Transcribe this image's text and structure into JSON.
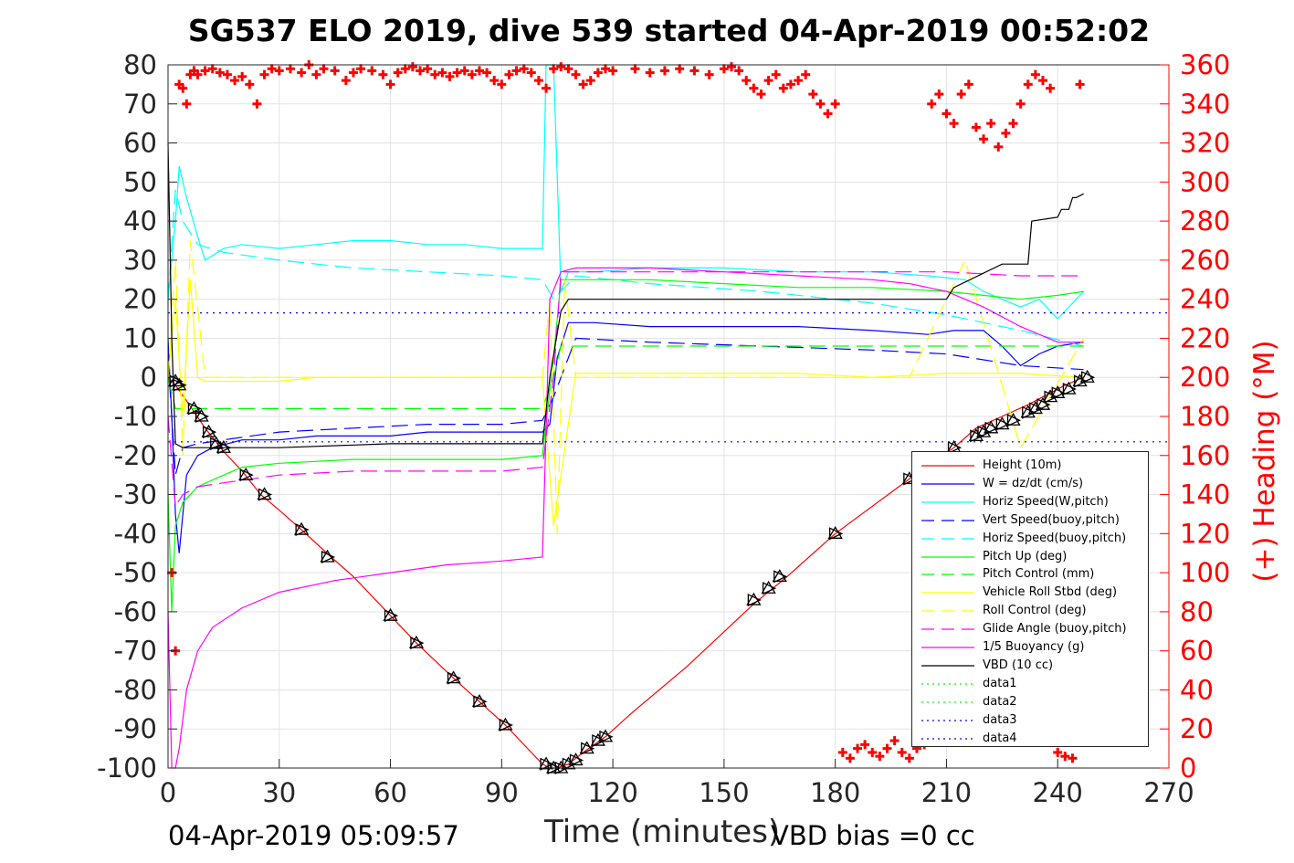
{
  "chart_data": {
    "type": "line",
    "title": "SG537 ELO 2019, dive 539 started 04-Apr-2019 00:52:02",
    "xlabel": "Time (minutes)",
    "ylabel": "",
    "ylabel_right": "(+) Heading (°M)",
    "xlim": [
      0,
      270
    ],
    "ylim": [
      -100,
      80
    ],
    "ylim_right": [
      0,
      360
    ],
    "x_ticks": [
      "0",
      "30",
      "60",
      "90",
      "120",
      "150",
      "180",
      "210",
      "240",
      "270"
    ],
    "y_ticks": [
      "80",
      "70",
      "60",
      "50",
      "40",
      "30",
      "20",
      "10",
      "0",
      "-10",
      "-20",
      "-30",
      "-40",
      "-50",
      "-60",
      "-70",
      "-80",
      "-90",
      "-100"
    ],
    "y_right_ticks": [
      "360",
      "340",
      "320",
      "300",
      "280",
      "260",
      "240",
      "220",
      "200",
      "180",
      "160",
      "140",
      "120",
      "100",
      "80",
      "60",
      "40",
      "20",
      "0"
    ],
    "grid": true,
    "legend_position": "bottom-right",
    "footer_left": "04-Apr-2019 05:09:57",
    "footer_right": "VBD bias =0 cc",
    "series": [
      {
        "name": "Height (10m)",
        "color": "#ff0000",
        "style": "solid",
        "x": [
          0,
          2,
          5,
          10,
          15,
          20,
          25,
          30,
          36,
          44,
          50,
          60,
          67,
          77,
          84,
          91,
          97,
          101,
          103,
          105,
          108,
          112,
          118,
          125,
          140,
          158,
          167,
          180,
          200,
          212,
          218,
          225,
          232,
          238,
          242,
          247
        ],
        "y": [
          0,
          -2,
          -6,
          -13,
          -19,
          -24,
          -30,
          -34,
          -39,
          -46,
          -51,
          -61,
          -68,
          -77,
          -83,
          -89,
          -95,
          -99,
          -100,
          -100,
          -99,
          -96,
          -92,
          -86,
          -74,
          -58,
          -51,
          -40,
          -26,
          -18,
          -13,
          -10,
          -7,
          -4,
          -2,
          0
        ]
      },
      {
        "name": "W = dz/dt (cm/s)",
        "color": "#0000ff",
        "style": "solid",
        "x": [
          0,
          1,
          2,
          3,
          5,
          8,
          12,
          16,
          20,
          30,
          40,
          50,
          60,
          70,
          80,
          90,
          101,
          103,
          105,
          108,
          115,
          130,
          150,
          170,
          190,
          205,
          212,
          220,
          225,
          230,
          235,
          240,
          247
        ],
        "y": [
          10,
          -10,
          -35,
          -45,
          -25,
          -20,
          -18,
          -17,
          -16,
          -16,
          -15,
          -15,
          -15,
          -14,
          -14,
          -14,
          -14,
          -12,
          5,
          14,
          14,
          13,
          13,
          13,
          12,
          11,
          12,
          12,
          8,
          3,
          6,
          8,
          9
        ]
      },
      {
        "name": "Horiz Speed(W,pitch)",
        "color": "#00ffff",
        "style": "solid",
        "x": [
          0,
          2,
          3,
          5,
          8,
          10,
          15,
          20,
          30,
          40,
          50,
          60,
          70,
          80,
          90,
          101,
          102,
          104,
          106,
          108,
          115,
          130,
          150,
          170,
          190,
          205,
          215,
          220,
          225,
          230,
          235,
          240,
          247
        ],
        "y": [
          20,
          40,
          54,
          46,
          36,
          30,
          33,
          34,
          33,
          34,
          35,
          35,
          34,
          34,
          33,
          33,
          80,
          80,
          22,
          27,
          27,
          28,
          28,
          27,
          27,
          26,
          25,
          22,
          20,
          18,
          20,
          15,
          22
        ]
      },
      {
        "name": "Vert Speed(buoy,pitch)",
        "color": "#0000ff",
        "style": "dashed",
        "x": [
          0,
          2,
          4,
          8,
          15,
          30,
          50,
          70,
          90,
          101,
          104,
          110,
          130,
          160,
          190,
          210,
          230,
          247
        ],
        "y": [
          5,
          -25,
          -18,
          -17,
          -16,
          -14,
          -13,
          -12,
          -12,
          -11,
          -5,
          10,
          9,
          8,
          7,
          6,
          3,
          2
        ]
      },
      {
        "name": "Horiz Speed(buoy,pitch)",
        "color": "#00ffff",
        "style": "dashed",
        "x": [
          0,
          2,
          4,
          8,
          15,
          30,
          50,
          70,
          90,
          101,
          104,
          110,
          130,
          160,
          190,
          210,
          230,
          247
        ],
        "y": [
          20,
          48,
          40,
          34,
          32,
          30,
          28,
          27,
          26,
          25,
          20,
          26,
          24,
          22,
          19,
          16,
          12,
          8
        ]
      },
      {
        "name": "Pitch Up (deg)",
        "color": "#00ff00",
        "style": "solid",
        "x": [
          0,
          1,
          2,
          4,
          8,
          15,
          20,
          30,
          50,
          70,
          90,
          101,
          104,
          106,
          110,
          130,
          150,
          170,
          190,
          210,
          220,
          230,
          240,
          247
        ],
        "y": [
          -30,
          -60,
          -38,
          -32,
          -28,
          -25,
          -23,
          -22,
          -21,
          -21,
          -21,
          -20,
          5,
          25,
          25,
          25,
          24,
          23,
          23,
          22,
          21,
          20,
          21,
          22
        ]
      },
      {
        "name": "Pitch Control (mm)",
        "color": "#00ff00",
        "style": "dashed",
        "x": [
          0,
          2,
          4,
          10,
          20,
          101,
          104,
          106,
          120,
          200,
          247
        ],
        "y": [
          0,
          -8,
          -8,
          -8,
          -8,
          -8,
          0,
          8,
          8,
          8,
          8
        ]
      },
      {
        "name": "Vehicle Roll Stbd (deg)",
        "color": "#ffff00",
        "style": "solid",
        "x": [
          0,
          2,
          4,
          6,
          8,
          10,
          20,
          30,
          40,
          50,
          60,
          70,
          80,
          90,
          101,
          104,
          110,
          130,
          150,
          170,
          190,
          210,
          230,
          247
        ],
        "y": [
          0,
          20,
          -10,
          25,
          0,
          -1,
          -1,
          -1,
          0,
          0,
          0,
          0,
          0,
          0,
          0,
          -38,
          1,
          1,
          1,
          1,
          0,
          1,
          1,
          0
        ]
      },
      {
        "name": "Roll Control (deg)",
        "color": "#ffff00",
        "style": "dashed",
        "x": [
          0,
          2,
          4,
          6,
          10,
          50,
          101,
          103,
          105,
          107,
          110,
          160,
          200,
          215,
          230,
          247
        ],
        "y": [
          0,
          30,
          -20,
          35,
          0,
          0,
          0,
          20,
          -40,
          25,
          0,
          0,
          0,
          30,
          -18,
          10
        ]
      },
      {
        "name": "Glide Angle (buoy,pitch)",
        "color": "#ff00ff",
        "style": "dashed",
        "x": [
          0,
          2,
          4,
          8,
          15,
          30,
          50,
          70,
          90,
          101,
          104,
          106,
          110,
          130,
          160,
          190,
          210,
          230,
          247
        ],
        "y": [
          -10,
          -33,
          -30,
          -28,
          -27,
          -25,
          -24,
          -24,
          -24,
          -23,
          0,
          27,
          27,
          27,
          27,
          27,
          27,
          26,
          26
        ]
      },
      {
        "name": "1/5 Buoyancy (g)",
        "color": "#ff00ff",
        "style": "solid",
        "x": [
          0,
          1,
          2,
          3,
          5,
          8,
          12,
          20,
          30,
          45,
          60,
          75,
          90,
          101,
          103,
          106,
          110,
          130,
          150,
          170,
          190,
          200,
          210,
          220,
          230,
          240,
          247
        ],
        "y": [
          -60,
          -100,
          -100,
          -95,
          -80,
          -70,
          -64,
          -59,
          -55,
          -52,
          -50,
          -48,
          -47,
          -46,
          20,
          27,
          28,
          28,
          27,
          26,
          25,
          24,
          22,
          18,
          13,
          9,
          9
        ]
      },
      {
        "name": "VBD (10 cc)",
        "color": "#000000",
        "style": "solid",
        "x": [
          0,
          1,
          2,
          4,
          30,
          60,
          90,
          101,
          103,
          106,
          108,
          150,
          200,
          210,
          212,
          225,
          226,
          232,
          233,
          240,
          241,
          243,
          244,
          245,
          247
        ],
        "y": [
          60,
          10,
          -17,
          -18,
          -18,
          -17,
          -17,
          -17,
          0,
          17,
          20,
          20,
          20,
          20,
          23,
          29,
          29,
          29,
          40,
          41,
          43,
          43,
          46,
          46,
          47
        ]
      },
      {
        "name": "data1",
        "color": "#00ff00",
        "style": "dotted",
        "x": [],
        "y": []
      },
      {
        "name": "data2",
        "color": "#00ff00",
        "style": "dotted",
        "x": [],
        "y": []
      },
      {
        "name": "data3",
        "color": "#0000ff",
        "style": "dotted",
        "x": [
          0,
          270
        ],
        "y": [
          16.5,
          16.5
        ]
      },
      {
        "name": "data4",
        "color": "#0000ff",
        "style": "dotted",
        "x": [
          0,
          270
        ],
        "y": [
          -16.5,
          -16.5
        ]
      }
    ],
    "heading_markers": {
      "color": "#ff0000",
      "marker": "+",
      "axis": "right",
      "x": [
        1,
        2,
        3,
        4,
        5,
        6,
        7,
        8,
        10,
        12,
        14,
        16,
        18,
        20,
        22,
        24,
        26,
        28,
        30,
        33,
        36,
        38,
        40,
        42,
        45,
        48,
        50,
        52,
        55,
        58,
        60,
        62,
        64,
        66,
        68,
        70,
        72,
        74,
        76,
        78,
        80,
        82,
        84,
        86,
        88,
        90,
        92,
        94,
        96,
        98,
        100,
        102,
        104,
        106,
        108,
        110,
        112,
        114,
        116,
        118,
        120,
        126,
        130,
        134,
        138,
        142,
        146,
        150,
        152,
        154,
        156,
        158,
        160,
        162,
        164,
        166,
        168,
        170,
        172,
        174,
        176,
        178,
        180,
        182,
        184,
        186,
        188,
        190,
        192,
        194,
        196,
        198,
        200,
        202,
        204,
        206,
        208,
        210,
        212,
        214,
        216,
        218,
        220,
        222,
        224,
        226,
        228,
        230,
        232,
        234,
        236,
        238,
        240,
        242,
        244,
        246
      ],
      "y": [
        100,
        60,
        350,
        348,
        340,
        355,
        357,
        355,
        357,
        358,
        356,
        355,
        352,
        354,
        350,
        340,
        355,
        358,
        357,
        358,
        356,
        360,
        355,
        358,
        357,
        352,
        356,
        358,
        357,
        355,
        350,
        356,
        358,
        359,
        357,
        358,
        355,
        356,
        354,
        356,
        357,
        355,
        357,
        356,
        352,
        350,
        355,
        357,
        358,
        356,
        352,
        348,
        358,
        359,
        358,
        355,
        350,
        352,
        356,
        358,
        357,
        358,
        356,
        357,
        358,
        357,
        355,
        358,
        359,
        357,
        352,
        348,
        345,
        352,
        355,
        348,
        350,
        352,
        355,
        345,
        340,
        335,
        340,
        8,
        5,
        10,
        12,
        8,
        6,
        10,
        14,
        8,
        5,
        10,
        12,
        340,
        345,
        335,
        330,
        345,
        350,
        328,
        322,
        330,
        318,
        325,
        330,
        340,
        350,
        355,
        352,
        348,
        8,
        6,
        5,
        350
      ]
    },
    "triangle_markers": {
      "color": "#000000",
      "marker": "triangle",
      "x": [
        2,
        3,
        7,
        9,
        11,
        13,
        15,
        21,
        26,
        36,
        43,
        60,
        67,
        77,
        84,
        91,
        102,
        104,
        106,
        108,
        110,
        113,
        116,
        118,
        158,
        162,
        165,
        180,
        200,
        212,
        218,
        220,
        222,
        225,
        228,
        232,
        234,
        236,
        238,
        240,
        243,
        246,
        248
      ],
      "y": [
        -1,
        -2,
        -8,
        -10,
        -14,
        -17,
        -18,
        -25,
        -30,
        -39,
        -46,
        -61,
        -68,
        -77,
        -83,
        -89,
        -99,
        -100,
        -100,
        -99,
        -98,
        -95,
        -93,
        -92,
        -57,
        -54,
        -51,
        -40,
        -26,
        -18,
        -15,
        -14,
        -13,
        -12,
        -11,
        -9,
        -8,
        -7,
        -5,
        -4,
        -3,
        -1,
        0
      ]
    }
  }
}
